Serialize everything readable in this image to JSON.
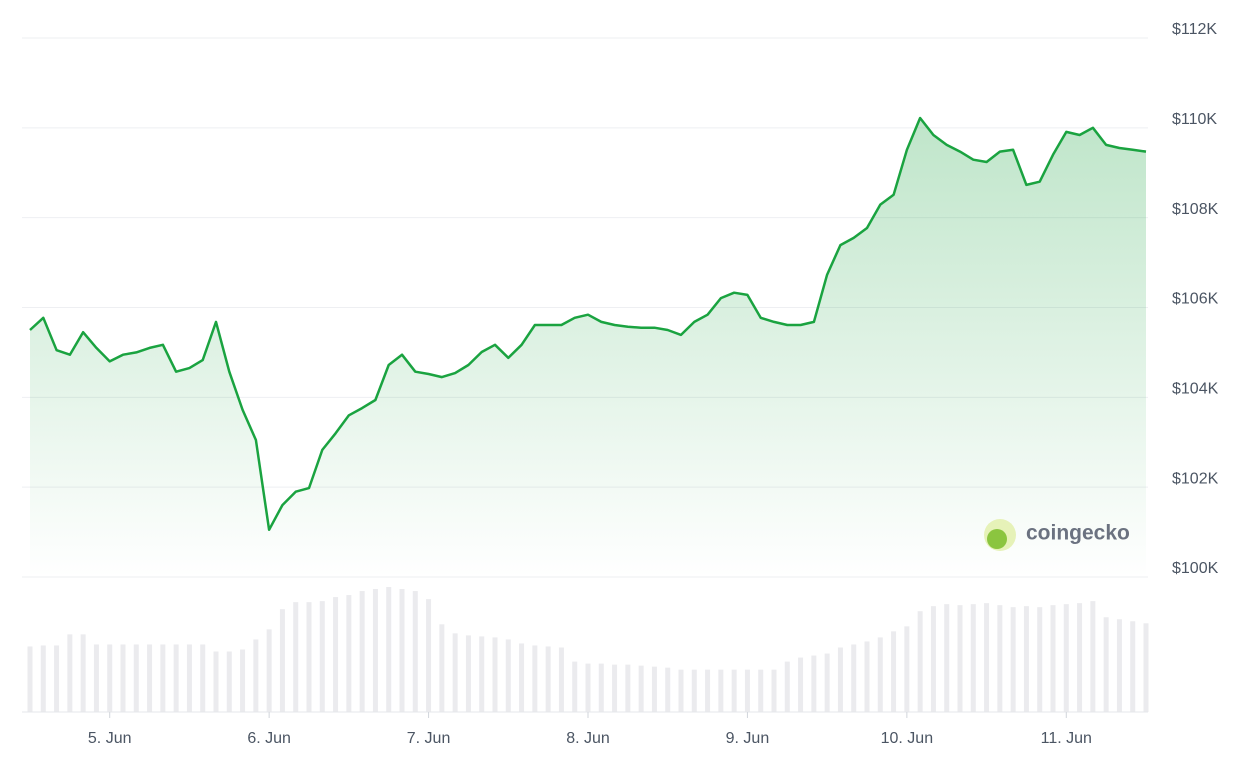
{
  "chart_data": {
    "type": "line",
    "color": "#1aa340",
    "watermark": "coingecko",
    "categories": [
      null,
      null,
      null,
      null,
      null,
      null,
      "5. Jun",
      null,
      null,
      null,
      null,
      null,
      null,
      null,
      null,
      null,
      null,
      null,
      "6. Jun",
      null,
      null,
      null,
      null,
      null,
      null,
      null,
      null,
      null,
      null,
      null,
      "7. Jun",
      null,
      null,
      null,
      null,
      null,
      null,
      null,
      null,
      null,
      null,
      null,
      "8. Jun",
      null,
      null,
      null,
      null,
      null,
      null,
      null,
      null,
      null,
      null,
      null,
      "9. Jun",
      null,
      null,
      null,
      null,
      null,
      null,
      null,
      null,
      null,
      null,
      null,
      "10. Jun",
      null,
      null,
      null,
      null,
      null,
      null,
      null,
      null,
      null,
      null,
      null,
      "11. Jun",
      null,
      null,
      null,
      null,
      null,
      null
    ],
    "values": [
      105500,
      105770,
      105050,
      104950,
      105450,
      105100,
      104800,
      104950,
      105000,
      105100,
      105170,
      104570,
      104650,
      104830,
      105680,
      104570,
      103720,
      103050,
      101050,
      101600,
      101900,
      101980,
      102830,
      103200,
      103600,
      103760,
      103940,
      104720,
      104950,
      104570,
      104520,
      104450,
      104540,
      104720,
      105010,
      105170,
      104880,
      105170,
      105610,
      105610,
      105610,
      105770,
      105840,
      105680,
      105610,
      105570,
      105550,
      105550,
      105500,
      105390,
      105680,
      105840,
      106210,
      106330,
      106280,
      105770,
      105680,
      105610,
      105610,
      105680,
      106730,
      107390,
      107550,
      107770,
      108290,
      108510,
      109510,
      110220,
      109840,
      109620,
      109470,
      109290,
      109240,
      109470,
      109510,
      108730,
      108800,
      109400,
      109910,
      109840,
      110000,
      109620,
      109550,
      109510,
      109470
    ],
    "volume": {
      "color": "#ebebee",
      "values": [
        65,
        66,
        66,
        77,
        77,
        67,
        67,
        67,
        67,
        67,
        67,
        67,
        67,
        67,
        60,
        60,
        62,
        72,
        82,
        102,
        109,
        109,
        110,
        114,
        116,
        120,
        122,
        124,
        122,
        120,
        112,
        87,
        78,
        76,
        75,
        74,
        72,
        68,
        66,
        65,
        64,
        50,
        48,
        48,
        47,
        47,
        46,
        45,
        44,
        42,
        42,
        42,
        42,
        42,
        42,
        42,
        42,
        50,
        54,
        56,
        58,
        64,
        67,
        70,
        74,
        80,
        85,
        100,
        105,
        107,
        106,
        107,
        108,
        106,
        104,
        105,
        104,
        106,
        107,
        108,
        110,
        94,
        92,
        90,
        88
      ]
    },
    "ylim": [
      100000,
      112000
    ],
    "yticks": [
      {
        "value": 100000,
        "label": "$100K"
      },
      {
        "value": 102000,
        "label": "$102K"
      },
      {
        "value": 104000,
        "label": "$104K"
      },
      {
        "value": 106000,
        "label": "$106K"
      },
      {
        "value": 108000,
        "label": "$108K"
      },
      {
        "value": 110000,
        "label": "$110K"
      },
      {
        "value": 112000,
        "label": "$112K"
      }
    ],
    "grid": true
  }
}
